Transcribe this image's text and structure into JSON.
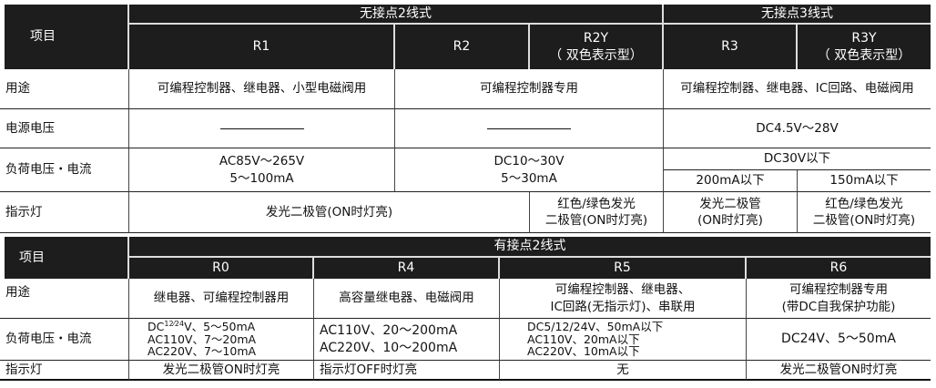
{
  "table1": {
    "item_header": "项目",
    "group_2wire": "无接点2线式",
    "group_3wire": "无接点3线式",
    "cols": {
      "r1": "R1",
      "r2": "R2",
      "r2y": "R2Y\n（ 双色表示型）",
      "r3": "R3",
      "r3y": "R3Y\n（ 双色表示型）"
    },
    "rows": {
      "usage": {
        "label": "用途",
        "r1": "可编程控制器、继电器、小型电磁阀用",
        "r2": "可编程控制器专用",
        "r3": "可编程控制器、继电器、IC回路、电磁阀用"
      },
      "supply": {
        "label": "电源电压",
        "r3": "DC4.5V～28V"
      },
      "load": {
        "label": "负荷电压・电流",
        "r1": "AC85V～265V\n5～100mA",
        "r2": "DC10～30V\n5～30mA",
        "r3_voltage": "DC30V以下",
        "r3": "200mA以下",
        "r3y": "150mA以下"
      },
      "indicator": {
        "label": "指示灯",
        "r1r2": "发光二极管(ON时灯亮)",
        "r2y": "红色/绿色发光\n二极管(ON时灯亮)",
        "r3": "发光二极管\n(ON时灯亮)",
        "r3y": "红色/绿色发光\n二极管(ON时灯亮)"
      }
    }
  },
  "table2": {
    "item_header": "项目",
    "group": "有接点2线式",
    "cols": {
      "r0": "R0",
      "r4": "R4",
      "r5": "R5",
      "r6": "R6"
    },
    "rows": {
      "usage": {
        "label": "用途",
        "r0": "继电器、可编程控制器用",
        "r4": "高容量继电器、电磁阀用",
        "r5": "可编程控制器、继电器、\nIC回路(无指示灯)、串联用",
        "r6": "可编程控制器专用\n(带DC自我保护功能)"
      },
      "load": {
        "label": "负荷电压・电流",
        "r0_dc_prefix": "DC",
        "r0_dc_sup": "12⁄24",
        "r0_dc_rest": "V、5～50mA",
        "r0_rest": "AC110V、7～20mA\nAC220V、7～10mA",
        "r4": "AC110V、20～200mA\nAC220V、10～200mA",
        "r5": "DC5/12/24V、50mA以下\nAC110V、20mA以下\nAC220V、10mA以下",
        "r6": "DC24V、5～50mA"
      },
      "indicator": {
        "label": "指示灯",
        "r0": "发光二极管ON时灯亮",
        "r4": "指示灯OFF时灯亮",
        "r5": "无",
        "r6": "发光二极管ON时灯亮"
      }
    }
  }
}
